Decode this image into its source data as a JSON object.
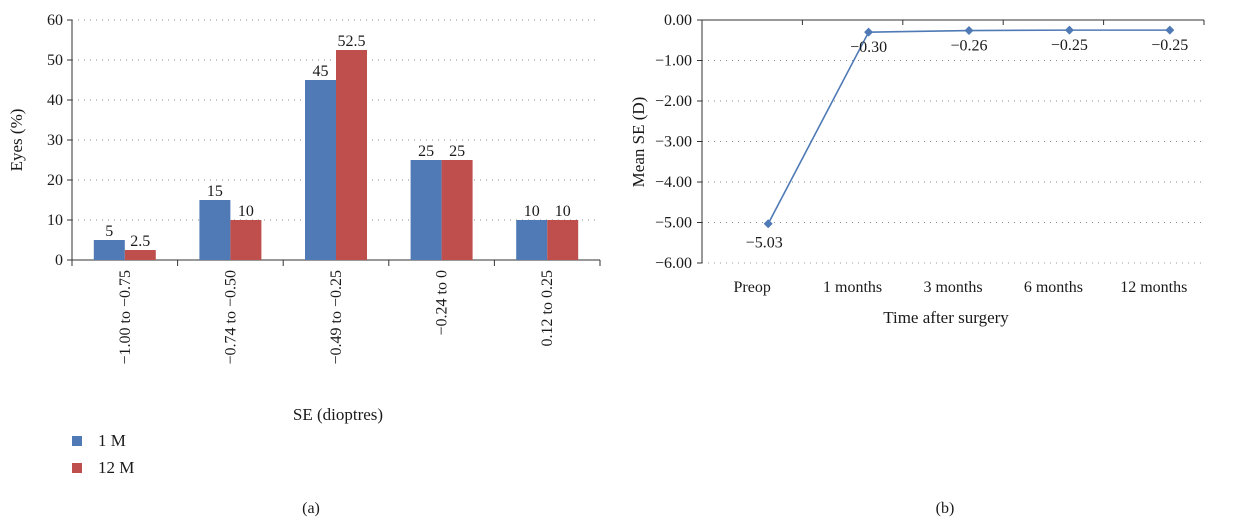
{
  "charts": [
    {
      "panel_label": "(a)",
      "chart_data": {
        "type": "bar",
        "xlabel": "SE (dioptres)",
        "ylabel": "Eyes (%)",
        "ylim": [
          0,
          60
        ],
        "yticks": [
          0,
          10,
          20,
          30,
          40,
          50,
          60
        ],
        "categories": [
          "−1.00 to −0.75",
          "−0.74 to −0.50",
          "−0.49 to −0.25",
          "−0.24 to 0",
          "0.12 to 0.25"
        ],
        "series": [
          {
            "name": "1 M",
            "values": [
              5,
              15,
              45,
              25,
              10
            ],
            "labels": [
              "5",
              "15",
              "45",
              "25",
              "10"
            ],
            "color": "#4f7ab5"
          },
          {
            "name": "12 M",
            "values": [
              2.5,
              10,
              52.5,
              25,
              10
            ],
            "labels": [
              "2.5",
              "10",
              "52.5",
              "25",
              "10"
            ],
            "color": "#bf4f4c"
          }
        ],
        "grid": true,
        "legend": "bottom-left"
      }
    },
    {
      "panel_label": "(b)",
      "chart_data": {
        "type": "line",
        "xlabel": "Time after surgery",
        "ylabel": "Mean SE (D)",
        "ylim": [
          -6,
          0
        ],
        "yticks": [
          "0.00",
          "−1.00",
          "−2.00",
          "−3.00",
          "−4.00",
          "−5.00",
          "−6.00"
        ],
        "categories": [
          "Preop",
          "1 months",
          "3 months",
          "6 months",
          "12 months"
        ],
        "values": [
          -5.03,
          -0.3,
          -0.26,
          -0.25,
          -0.25
        ],
        "labels": [
          "−5.03",
          "−0.30",
          "−0.26",
          "−0.25",
          "−0.25"
        ],
        "color": "#4f7ab5",
        "grid": true
      }
    }
  ]
}
